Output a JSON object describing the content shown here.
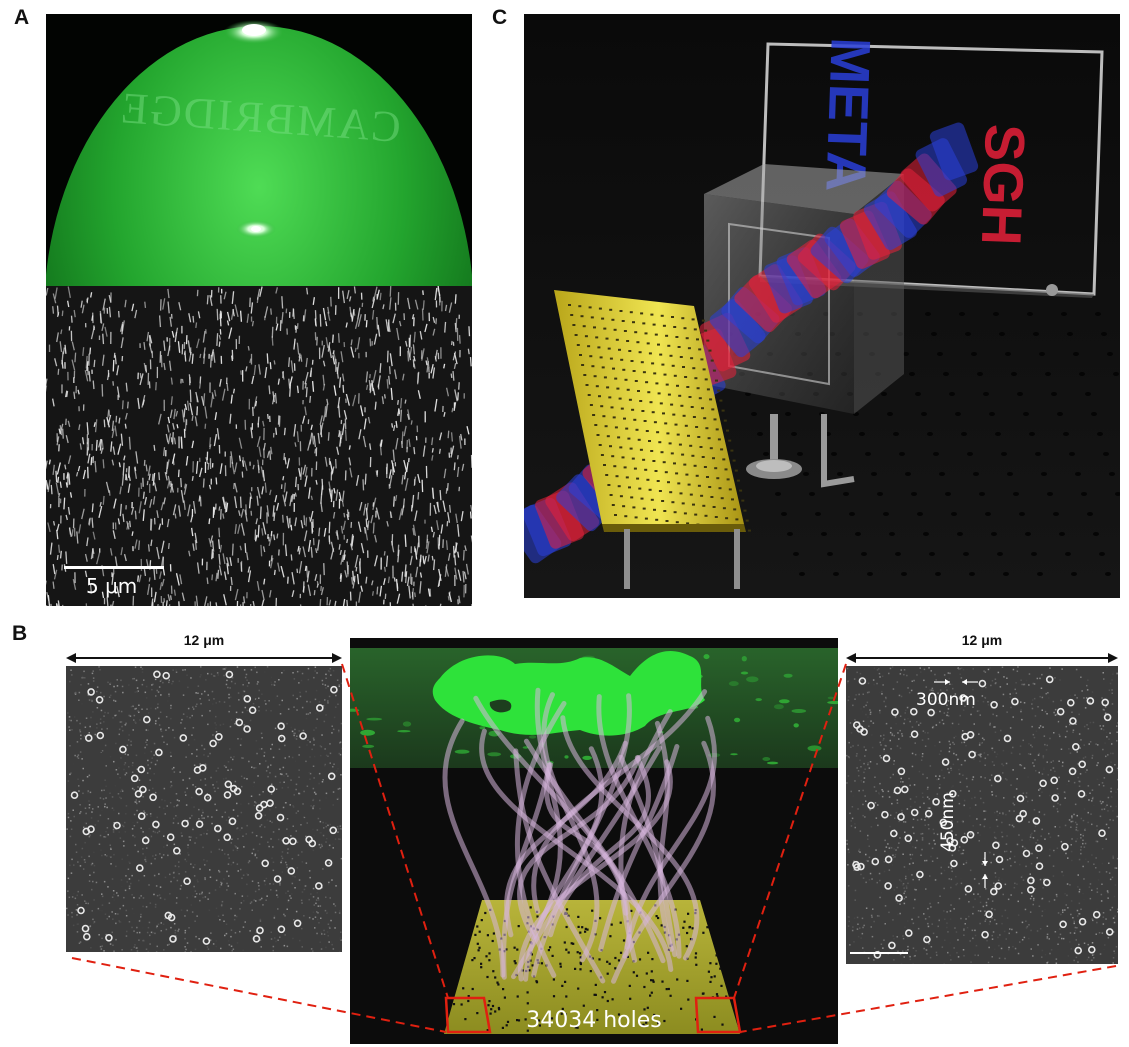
{
  "figure": {
    "panels": [
      {
        "id": "A",
        "label": "A",
        "scale_bar": "5 μm",
        "hologram_text": "CAMBRIDGE"
      },
      {
        "id": "B",
        "label": "B",
        "left_sem": {
          "width_label": "12 μm"
        },
        "right_sem": {
          "width_label": "12 μm",
          "hole_diameter": "300nm",
          "hole_spacing": "450nm"
        },
        "center_caption": "34034 holes"
      },
      {
        "id": "C",
        "label": "C",
        "hologram_text_blue": "META",
        "hologram_text_red": "SGH"
      }
    ]
  },
  "colors": {
    "hologram_green": "#1fae2a",
    "hologram_red": "#e8203a",
    "hologram_blue": "#2a3fd8",
    "gold": "#d8c82a",
    "dashed_line": "#e02010"
  }
}
